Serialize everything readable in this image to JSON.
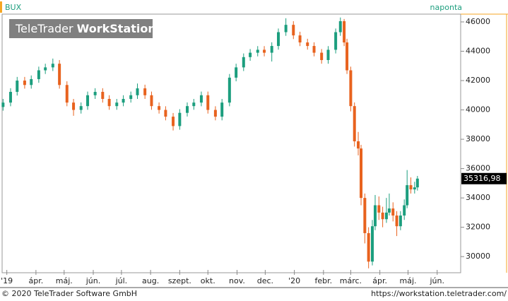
{
  "chart_data": {
    "type": "candlestick",
    "title": "BUX",
    "interval": "naponta",
    "watermark": [
      "TeleTrader",
      "WorkStation"
    ],
    "footer_left": "© 2020 TeleTrader Software GmbH",
    "footer_right": "https://workstation.teletrader.com/",
    "last_label": "35316,98",
    "up_color": "#1c9e7e",
    "down_color": "#e8621e",
    "xlim": [
      -5,
      483
    ],
    "ylim": [
      28900,
      46530
    ],
    "xticks": [
      {
        "value": 0,
        "label": "'19"
      },
      {
        "value": 31,
        "label": "ápr."
      },
      {
        "value": 61,
        "label": "máj."
      },
      {
        "value": 92,
        "label": "jún."
      },
      {
        "value": 122,
        "label": "júl."
      },
      {
        "value": 153,
        "label": "aug."
      },
      {
        "value": 184,
        "label": "szept."
      },
      {
        "value": 214,
        "label": "okt."
      },
      {
        "value": 245,
        "label": "nov."
      },
      {
        "value": 275,
        "label": "dec."
      },
      {
        "value": 306,
        "label": "'20"
      },
      {
        "value": 337,
        "label": "febr."
      },
      {
        "value": 366,
        "label": "márc."
      },
      {
        "value": 397,
        "label": "ápr."
      },
      {
        "value": 427,
        "label": "máj."
      },
      {
        "value": 458,
        "label": "jún."
      }
    ],
    "yticks": [
      30000,
      32000,
      34000,
      36000,
      38000,
      40000,
      42000,
      44000,
      46000
    ],
    "x": [
      -4,
      4,
      11,
      19,
      26,
      34,
      41,
      49,
      56,
      64,
      71,
      79,
      86,
      94,
      102,
      109,
      117,
      124,
      132,
      139,
      147,
      154,
      162,
      169,
      177,
      184,
      192,
      199,
      207,
      214,
      222,
      229,
      237,
      244,
      252,
      259,
      267,
      274,
      282,
      289,
      297,
      305,
      312,
      320,
      327,
      335,
      342,
      350,
      355,
      359,
      362,
      366,
      370,
      374,
      377,
      381,
      385,
      389,
      392,
      396,
      400,
      404,
      407,
      411,
      415,
      419,
      423,
      426,
      430,
      434,
      437
    ],
    "open": [
      40200,
      40500,
      41230,
      42000,
      41700,
      42100,
      42700,
      42900,
      43150,
      41700,
      40500,
      40000,
      40260,
      41000,
      41230,
      40750,
      40260,
      40500,
      40750,
      41000,
      41470,
      41000,
      40260,
      40000,
      39540,
      38900,
      39800,
      40260,
      40500,
      41000,
      40000,
      39540,
      40500,
      42200,
      42900,
      43600,
      43900,
      44100,
      43900,
      44360,
      45300,
      45800,
      45080,
      44600,
      44360,
      43900,
      43400,
      44100,
      45300,
      46050,
      44600,
      42700,
      40260,
      37860,
      37370,
      34000,
      31600,
      29660,
      32070,
      33500,
      33000,
      32550,
      33000,
      33280,
      32800,
      32070,
      32800,
      33500,
      34870,
      34580,
      34720
    ],
    "high": [
      40750,
      41480,
      42250,
      42250,
      42350,
      42950,
      43150,
      43500,
      43400,
      41950,
      40750,
      40510,
      41250,
      41480,
      41480,
      41000,
      40750,
      41000,
      41250,
      41800,
      41720,
      41250,
      40510,
      40250,
      39790,
      40050,
      40510,
      40750,
      41250,
      41250,
      40250,
      40750,
      42450,
      43150,
      43850,
      44150,
      44350,
      44350,
      44610,
      45550,
      46250,
      46050,
      45330,
      44850,
      44610,
      44150,
      44350,
      45550,
      46300,
      46200,
      44850,
      42950,
      40510,
      38500,
      37620,
      34300,
      32000,
      32500,
      34200,
      34100,
      33400,
      34000,
      34300,
      33700,
      33100,
      33100,
      33900,
      35900,
      35400,
      35100,
      35500
    ],
    "low": [
      39950,
      40250,
      40980,
      41450,
      41450,
      41850,
      42450,
      42650,
      41450,
      40250,
      39600,
      39750,
      40010,
      40750,
      40500,
      40010,
      40010,
      40250,
      40500,
      40750,
      40750,
      40010,
      39750,
      39290,
      38600,
      38650,
      39550,
      40010,
      40250,
      39750,
      39290,
      39290,
      40250,
      41950,
      42650,
      43350,
      43650,
      43650,
      43300,
      44110,
      45050,
      44830,
      44350,
      44110,
      43650,
      43150,
      43150,
      43850,
      45050,
      44350,
      42450,
      39900,
      37500,
      36900,
      33500,
      30900,
      29200,
      29400,
      31800,
      32500,
      32000,
      32300,
      32800,
      32400,
      31400,
      31800,
      32500,
      33300,
      34300,
      34300,
      34500
    ],
    "close": [
      40500,
      41230,
      42000,
      41700,
      42100,
      42700,
      42900,
      43150,
      41700,
      40500,
      40000,
      40260,
      41000,
      41230,
      40750,
      40260,
      40500,
      40750,
      41000,
      41470,
      41000,
      40260,
      40000,
      39540,
      38900,
      39800,
      40260,
      40500,
      41000,
      40000,
      39540,
      40500,
      42200,
      42900,
      43600,
      43900,
      44100,
      43900,
      44360,
      45300,
      45800,
      45080,
      44600,
      44360,
      43900,
      43400,
      44100,
      45300,
      46050,
      44600,
      42700,
      40260,
      37860,
      37370,
      34000,
      31600,
      29660,
      32070,
      33500,
      33000,
      32550,
      33000,
      33280,
      32800,
      32070,
      32800,
      33500,
      34870,
      34580,
      34720,
      35316.98
    ]
  }
}
